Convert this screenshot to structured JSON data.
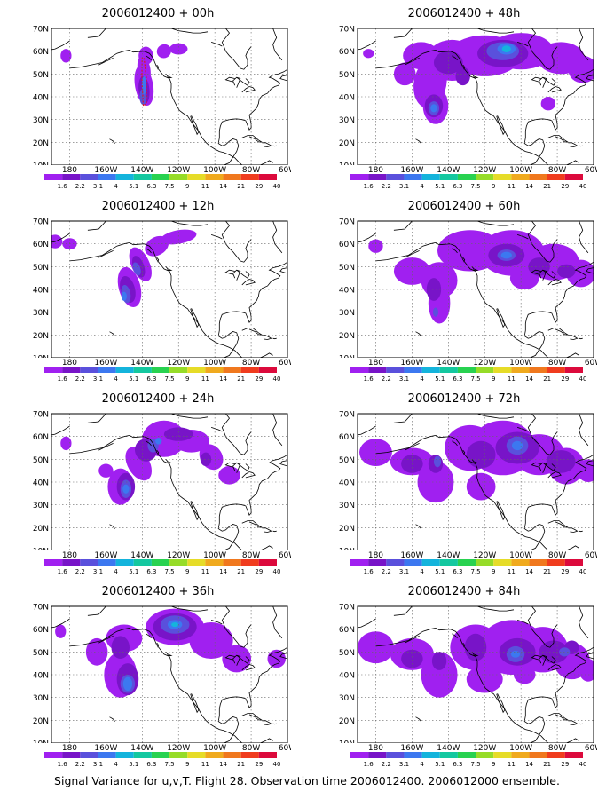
{
  "footer": "Signal Variance for u,v,T. Flight 28. Observation time 2006012400. 2006012000 ensemble.",
  "lat_labels": [
    "70N",
    "60N",
    "50N",
    "40N",
    "30N",
    "20N",
    "10N"
  ],
  "lon_labels": [
    "180",
    "160W",
    "140W",
    "120W",
    "100W",
    "80W",
    "60W"
  ],
  "colorbar": {
    "colors": [
      "#a020f0",
      "#7814c8",
      "#5a50dc",
      "#3c78f0",
      "#14b4dc",
      "#14c8a0",
      "#28d250",
      "#96dc28",
      "#e6dc28",
      "#f0aa1e",
      "#f0781e",
      "#f03c1e",
      "#dc0a3c"
    ],
    "labels": [
      "1.6",
      "2.2",
      "3.1",
      "4",
      "5.1",
      "6.3",
      "7.5",
      "9",
      "11",
      "14",
      "21",
      "29",
      "40"
    ]
  },
  "panels": [
    {
      "id": "p00",
      "title": "2006012400 + 00h"
    },
    {
      "id": "p48",
      "title": "2006012400 + 48h"
    },
    {
      "id": "p12",
      "title": "2006012400 + 12h"
    },
    {
      "id": "p60",
      "title": "2006012400 + 60h"
    },
    {
      "id": "p24",
      "title": "2006012400 + 24h"
    },
    {
      "id": "p72",
      "title": "2006012400 + 72h"
    },
    {
      "id": "p36",
      "title": "2006012400 + 36h"
    },
    {
      "id": "p84",
      "title": "2006012400 + 84h"
    }
  ]
}
